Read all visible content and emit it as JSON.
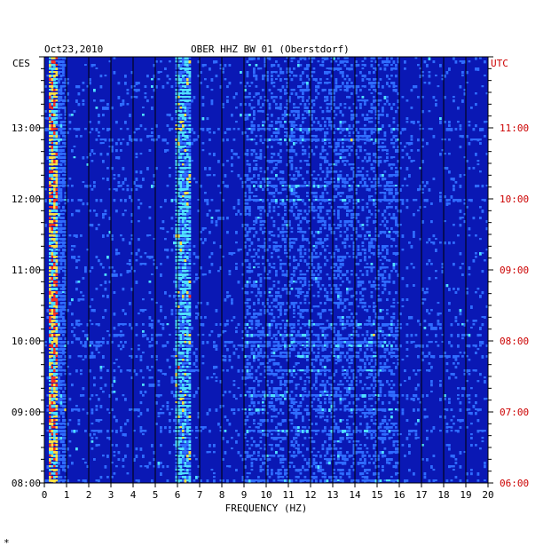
{
  "chart_data": {
    "type": "heatmap",
    "date_label": "Oct23,2010",
    "title": "OBER HHZ BW 01 (Oberstdorf)",
    "left_axis_tz": "CES",
    "right_axis_tz": "UTC",
    "xlabel": "FREQUENCY (HZ)",
    "x_ticks": [
      "0",
      "1",
      "2",
      "3",
      "4",
      "5",
      "6",
      "7",
      "8",
      "9",
      "10",
      "11",
      "12",
      "13",
      "14",
      "15",
      "16",
      "17",
      "18",
      "19",
      "20"
    ],
    "xlim": [
      0,
      20
    ],
    "left_ticks": [
      "08:00",
      "09:00",
      "10:00",
      "11:00",
      "12:00",
      "13:00"
    ],
    "right_ticks": [
      "06:00",
      "07:00",
      "08:00",
      "09:00",
      "10:00",
      "11:00"
    ],
    "time_range_local": [
      "08:00",
      "13:55"
    ],
    "colors": {
      "background": "#0a18b4",
      "low": "#0a18b4",
      "mid": "#2f6cff",
      "high": "#4fe0ff",
      "peak": "#ffe040",
      "extreme": "#ff3020",
      "utc_label": "#cc0000",
      "grid": "#000000"
    },
    "features": [
      {
        "band_hz": [
          0.2,
          0.6
        ],
        "intensity": "extreme"
      },
      {
        "band_hz": [
          5.9,
          6.6
        ],
        "intensity": "high"
      },
      {
        "band_hz": [
          9.0,
          16.0
        ],
        "intensity": "mid"
      }
    ],
    "footer_mark": "*"
  }
}
